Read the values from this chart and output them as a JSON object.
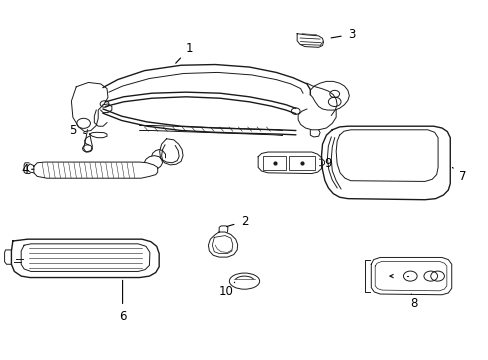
{
  "background_color": "#ffffff",
  "line_color": "#1a1a1a",
  "label_color": "#000000",
  "font_size": 8.5,
  "fig_width": 4.89,
  "fig_height": 3.6,
  "dpi": 100,
  "parts_labels": {
    "1": [
      0.388,
      0.868,
      0.388,
      0.82
    ],
    "2": [
      0.5,
      0.378,
      0.5,
      0.345
    ],
    "3": [
      0.72,
      0.908,
      0.676,
      0.895
    ],
    "4": [
      0.062,
      0.53,
      0.095,
      0.53
    ],
    "5": [
      0.148,
      0.622,
      0.178,
      0.622
    ],
    "6": [
      0.275,
      0.118,
      0.26,
      0.148
    ],
    "7": [
      0.94,
      0.5,
      0.906,
      0.5
    ],
    "8": [
      0.84,
      0.148,
      0.82,
      0.175
    ],
    "9": [
      0.694,
      0.535,
      0.66,
      0.535
    ],
    "10": [
      0.484,
      0.188,
      0.5,
      0.215
    ]
  }
}
